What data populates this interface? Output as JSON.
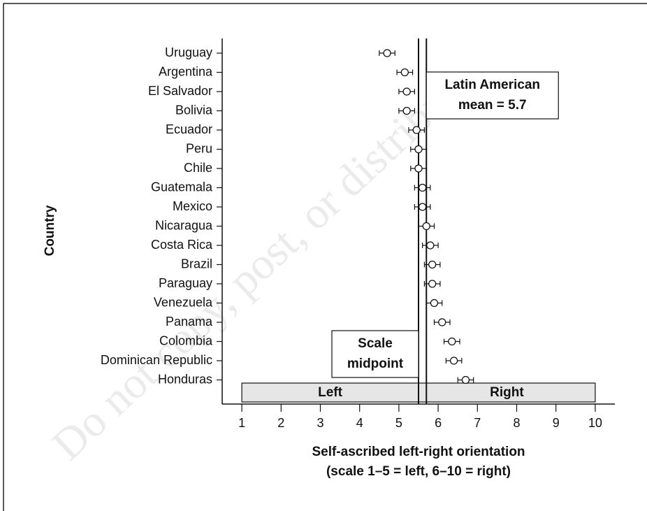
{
  "chart_data": {
    "type": "dotplot",
    "watermark": "Do not copy, post, or distribute",
    "ylabel": "Country",
    "xlabel": [
      "Self-ascribed left-right orientation",
      "(scale 1–5 = left, 6–10 = right)"
    ],
    "categories": [
      "Uruguay",
      "Argentina",
      "El Salvador",
      "Bolivia",
      "Ecuador",
      "Peru",
      "Chile",
      "Guatemala",
      "Mexico",
      "Nicaragua",
      "Costa Rica",
      "Brazil",
      "Paraguay",
      "Venezuela",
      "Panama",
      "Colombia",
      "Dominican Republic",
      "Honduras"
    ],
    "values": [
      4.7,
      5.15,
      5.2,
      5.2,
      5.45,
      5.5,
      5.5,
      5.6,
      5.6,
      5.7,
      5.8,
      5.85,
      5.85,
      5.9,
      6.1,
      6.35,
      6.4,
      6.7
    ],
    "errors": [
      0.2,
      0.2,
      0.2,
      0.2,
      0.2,
      0.2,
      0.2,
      0.2,
      0.2,
      0.2,
      0.2,
      0.2,
      0.2,
      0.2,
      0.2,
      0.2,
      0.2,
      0.2
    ],
    "xlim": [
      0.5,
      10.5
    ],
    "xticks": [
      1,
      2,
      3,
      4,
      5,
      6,
      7,
      8,
      9,
      10
    ],
    "reference_lines": [
      {
        "value": 5.5,
        "label": [
          "Scale",
          "midpoint"
        ]
      },
      {
        "value": 5.7,
        "label": [
          "Latin American",
          "mean = 5.7"
        ]
      }
    ],
    "bands": [
      {
        "label": "Left",
        "from": 1,
        "to": 5.5
      },
      {
        "label": "Right",
        "from": 5.5,
        "to": 10
      }
    ],
    "color": "#111111",
    "band_color": "#e6e6e6"
  }
}
